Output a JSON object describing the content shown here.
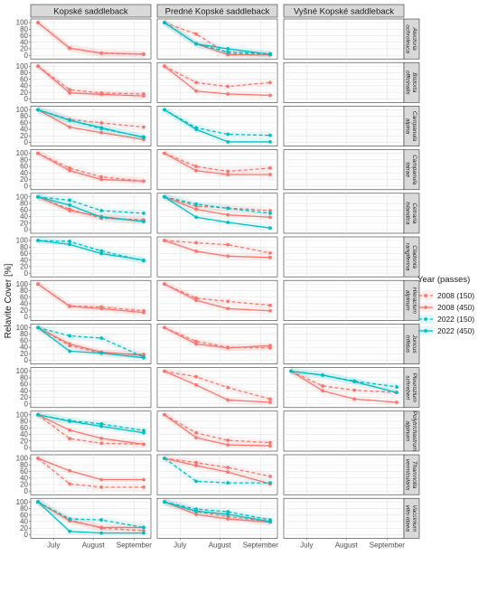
{
  "chart_data": {
    "type": "line",
    "ylabel": "Relavite Cover [%]",
    "ylim": [
      0,
      100
    ],
    "yticks": [
      "0",
      "20",
      "40",
      "60",
      "80",
      "100"
    ],
    "x_ticks": [
      "July",
      "August",
      "September"
    ],
    "columns": [
      "Kopské saddleback",
      "Predné Kopské saddleback",
      "Vyšné Kopské saddleback"
    ],
    "rows": [
      "Alectoria ochroleuca",
      "Bistorta officinalis",
      "Campanula alpina",
      "Campanula tatrae",
      "Cetraria islandica",
      "Cladonia rangiferina",
      "Hieracium alpinum",
      "Juncus trifidus",
      "Pleurozium schreberi",
      "Polytrichastrum alpinum",
      "Thamnolia vermicularis",
      "Vaccinium vitis-idaea"
    ],
    "legend": {
      "title": "Year (passes)",
      "placement": "right",
      "entries": [
        "2008 (150)",
        "2008 (450)",
        "2022 (150)",
        "2022 (450)"
      ]
    },
    "colors": {
      "2008": "#F8766D",
      "2022": "#00BFC4"
    },
    "x_positions": [
      0,
      0.3,
      0.6,
      1.0
    ],
    "series": [
      {
        "row": 0,
        "col": 0,
        "year": "2008",
        "passes": "150",
        "values": [
          100,
          22,
          6,
          3
        ]
      },
      {
        "row": 0,
        "col": 0,
        "year": "2008",
        "passes": "450",
        "values": [
          100,
          22,
          7,
          4
        ]
      },
      {
        "row": 0,
        "col": 1,
        "year": "2008",
        "passes": "150",
        "values": [
          100,
          65,
          5,
          3
        ]
      },
      {
        "row": 0,
        "col": 1,
        "year": "2008",
        "passes": "450",
        "values": [
          100,
          35,
          2,
          1
        ]
      },
      {
        "row": 0,
        "col": 1,
        "year": "2022",
        "passes": "150",
        "values": [
          100,
          35,
          10,
          5
        ]
      },
      {
        "row": 0,
        "col": 1,
        "year": "2022",
        "passes": "450",
        "values": [
          100,
          35,
          20,
          3
        ]
      },
      {
        "row": 1,
        "col": 0,
        "year": "2008",
        "passes": "150",
        "values": [
          100,
          28,
          18,
          15
        ]
      },
      {
        "row": 1,
        "col": 0,
        "year": "2008",
        "passes": "450",
        "values": [
          100,
          18,
          14,
          9
        ]
      },
      {
        "row": 1,
        "col": 1,
        "year": "2008",
        "passes": "150",
        "values": [
          100,
          50,
          38,
          50
        ]
      },
      {
        "row": 1,
        "col": 1,
        "year": "2008",
        "passes": "450",
        "values": [
          100,
          24,
          15,
          11
        ]
      },
      {
        "row": 2,
        "col": 0,
        "year": "2008",
        "passes": "150",
        "values": [
          100,
          70,
          60,
          47
        ]
      },
      {
        "row": 2,
        "col": 0,
        "year": "2008",
        "passes": "450",
        "values": [
          100,
          47,
          30,
          9
        ]
      },
      {
        "row": 2,
        "col": 0,
        "year": "2022",
        "passes": "150",
        "values": [
          100,
          68,
          42,
          17
        ]
      },
      {
        "row": 2,
        "col": 0,
        "year": "2022",
        "passes": "450",
        "values": [
          100,
          68,
          45,
          15
        ]
      },
      {
        "row": 2,
        "col": 1,
        "year": "2022",
        "passes": "150",
        "values": [
          100,
          45,
          25,
          22
        ]
      },
      {
        "row": 2,
        "col": 1,
        "year": "2022",
        "passes": "450",
        "values": [
          100,
          40,
          2,
          2
        ]
      },
      {
        "row": 3,
        "col": 0,
        "year": "2008",
        "passes": "150",
        "values": [
          100,
          55,
          28,
          15
        ]
      },
      {
        "row": 3,
        "col": 0,
        "year": "2008",
        "passes": "450",
        "values": [
          100,
          47,
          20,
          15
        ]
      },
      {
        "row": 3,
        "col": 1,
        "year": "2008",
        "passes": "150",
        "values": [
          100,
          60,
          45,
          55
        ]
      },
      {
        "row": 3,
        "col": 1,
        "year": "2008",
        "passes": "450",
        "values": [
          100,
          47,
          35,
          35
        ]
      },
      {
        "row": 4,
        "col": 0,
        "year": "2008",
        "passes": "150",
        "values": [
          100,
          62,
          35,
          30
        ]
      },
      {
        "row": 4,
        "col": 0,
        "year": "2008",
        "passes": "450",
        "values": [
          100,
          58,
          40,
          25
        ]
      },
      {
        "row": 4,
        "col": 0,
        "year": "2022",
        "passes": "150",
        "values": [
          100,
          90,
          58,
          50
        ]
      },
      {
        "row": 4,
        "col": 0,
        "year": "2022",
        "passes": "450",
        "values": [
          100,
          75,
          38,
          25
        ]
      },
      {
        "row": 4,
        "col": 1,
        "year": "2008",
        "passes": "150",
        "values": [
          100,
          72,
          66,
          58
        ]
      },
      {
        "row": 4,
        "col": 1,
        "year": "2008",
        "passes": "450",
        "values": [
          100,
          62,
          45,
          38
        ]
      },
      {
        "row": 4,
        "col": 1,
        "year": "2022",
        "passes": "150",
        "values": [
          100,
          78,
          65,
          50
        ]
      },
      {
        "row": 4,
        "col": 1,
        "year": "2022",
        "passes": "450",
        "values": [
          100,
          38,
          22,
          5
        ]
      },
      {
        "row": 5,
        "col": 0,
        "year": "2022",
        "passes": "150",
        "values": [
          100,
          97,
          68,
          38
        ]
      },
      {
        "row": 5,
        "col": 0,
        "year": "2022",
        "passes": "450",
        "values": [
          100,
          88,
          60,
          40
        ]
      },
      {
        "row": 5,
        "col": 1,
        "year": "2008",
        "passes": "150",
        "values": [
          100,
          93,
          87,
          62
        ]
      },
      {
        "row": 5,
        "col": 1,
        "year": "2008",
        "passes": "450",
        "values": [
          100,
          67,
          52,
          48
        ]
      },
      {
        "row": 6,
        "col": 0,
        "year": "2008",
        "passes": "150",
        "values": [
          100,
          33,
          30,
          18
        ]
      },
      {
        "row": 6,
        "col": 0,
        "year": "2008",
        "passes": "450",
        "values": [
          100,
          32,
          25,
          13
        ]
      },
      {
        "row": 6,
        "col": 1,
        "year": "2008",
        "passes": "150",
        "values": [
          100,
          57,
          47,
          35
        ]
      },
      {
        "row": 6,
        "col": 1,
        "year": "2008",
        "passes": "450",
        "values": [
          100,
          50,
          25,
          18
        ]
      },
      {
        "row": 7,
        "col": 0,
        "year": "2008",
        "passes": "150",
        "values": [
          100,
          45,
          22,
          18
        ]
      },
      {
        "row": 7,
        "col": 0,
        "year": "2008",
        "passes": "450",
        "values": [
          100,
          50,
          25,
          15
        ]
      },
      {
        "row": 7,
        "col": 0,
        "year": "2022",
        "passes": "150",
        "values": [
          100,
          75,
          68,
          10
        ]
      },
      {
        "row": 7,
        "col": 0,
        "year": "2022",
        "passes": "450",
        "values": [
          100,
          28,
          22,
          8
        ]
      },
      {
        "row": 7,
        "col": 1,
        "year": "2008",
        "passes": "150",
        "values": [
          100,
          58,
          40,
          38
        ]
      },
      {
        "row": 7,
        "col": 1,
        "year": "2008",
        "passes": "450",
        "values": [
          100,
          50,
          38,
          45
        ]
      },
      {
        "row": 8,
        "col": 1,
        "year": "2008",
        "passes": "150",
        "values": [
          100,
          83,
          50,
          15
        ]
      },
      {
        "row": 8,
        "col": 1,
        "year": "2008",
        "passes": "450",
        "values": [
          100,
          58,
          12,
          5
        ]
      },
      {
        "row": 8,
        "col": 2,
        "year": "2008",
        "passes": "150",
        "values": [
          100,
          55,
          42,
          35
        ]
      },
      {
        "row": 8,
        "col": 2,
        "year": "2008",
        "passes": "450",
        "values": [
          100,
          40,
          15,
          5
        ]
      },
      {
        "row": 8,
        "col": 2,
        "year": "2022",
        "passes": "150",
        "values": [
          100,
          88,
          70,
          52
        ]
      },
      {
        "row": 8,
        "col": 2,
        "year": "2022",
        "passes": "450",
        "values": [
          100,
          88,
          68,
          35
        ]
      },
      {
        "row": 9,
        "col": 0,
        "year": "2008",
        "passes": "150",
        "values": [
          100,
          27,
          13,
          10
        ]
      },
      {
        "row": 9,
        "col": 0,
        "year": "2008",
        "passes": "450",
        "values": [
          100,
          53,
          28,
          10
        ]
      },
      {
        "row": 9,
        "col": 0,
        "year": "2022",
        "passes": "150",
        "values": [
          100,
          82,
          72,
          52
        ]
      },
      {
        "row": 9,
        "col": 0,
        "year": "2022",
        "passes": "450",
        "values": [
          100,
          80,
          65,
          45
        ]
      },
      {
        "row": 9,
        "col": 1,
        "year": "2008",
        "passes": "150",
        "values": [
          100,
          45,
          22,
          15
        ]
      },
      {
        "row": 9,
        "col": 1,
        "year": "2008",
        "passes": "450",
        "values": [
          100,
          30,
          8,
          5
        ]
      },
      {
        "row": 10,
        "col": 0,
        "year": "2008",
        "passes": "150",
        "values": [
          100,
          22,
          12,
          12
        ]
      },
      {
        "row": 10,
        "col": 0,
        "year": "2008",
        "passes": "450",
        "values": [
          100,
          62,
          35,
          35
        ]
      },
      {
        "row": 10,
        "col": 1,
        "year": "2008",
        "passes": "150",
        "values": [
          100,
          87,
          72,
          45
        ]
      },
      {
        "row": 10,
        "col": 1,
        "year": "2008",
        "passes": "450",
        "values": [
          100,
          78,
          58,
          22
        ]
      },
      {
        "row": 10,
        "col": 1,
        "year": "2022",
        "passes": "150",
        "values": [
          100,
          30,
          25,
          25
        ]
      },
      {
        "row": 11,
        "col": 0,
        "year": "2008",
        "passes": "150",
        "values": [
          100,
          45,
          20,
          12
        ]
      },
      {
        "row": 11,
        "col": 0,
        "year": "2008",
        "passes": "450",
        "values": [
          100,
          42,
          22,
          22
        ]
      },
      {
        "row": 11,
        "col": 0,
        "year": "2022",
        "passes": "150",
        "values": [
          100,
          48,
          45,
          22
        ]
      },
      {
        "row": 11,
        "col": 0,
        "year": "2022",
        "passes": "450",
        "values": [
          100,
          10,
          5,
          5
        ]
      },
      {
        "row": 11,
        "col": 1,
        "year": "2008",
        "passes": "150",
        "values": [
          100,
          70,
          55,
          40
        ]
      },
      {
        "row": 11,
        "col": 1,
        "year": "2008",
        "passes": "450",
        "values": [
          100,
          62,
          48,
          38
        ]
      },
      {
        "row": 11,
        "col": 1,
        "year": "2022",
        "passes": "150",
        "values": [
          100,
          78,
          70,
          45
        ]
      },
      {
        "row": 11,
        "col": 1,
        "year": "2022",
        "passes": "450",
        "values": [
          100,
          72,
          62,
          40
        ]
      }
    ]
  }
}
